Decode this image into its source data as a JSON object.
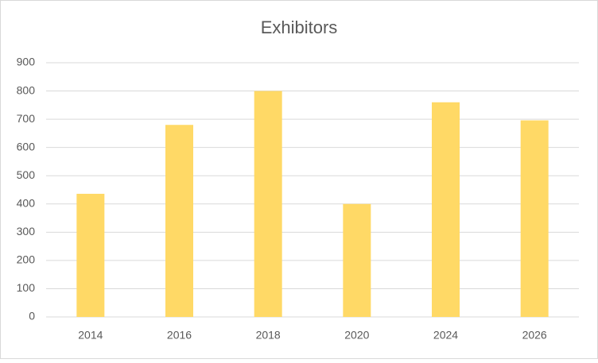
{
  "chart_data": {
    "type": "bar",
    "title": "Exhibitors",
    "categories": [
      "2014",
      "2016",
      "2018",
      "2020",
      "2024",
      "2026"
    ],
    "values": [
      436,
      680,
      800,
      400,
      760,
      696
    ],
    "color": "#ffd966",
    "ylim": [
      0,
      900
    ],
    "yticks": [
      0,
      100,
      200,
      300,
      400,
      500,
      600,
      700,
      800,
      900
    ],
    "grid": true
  }
}
